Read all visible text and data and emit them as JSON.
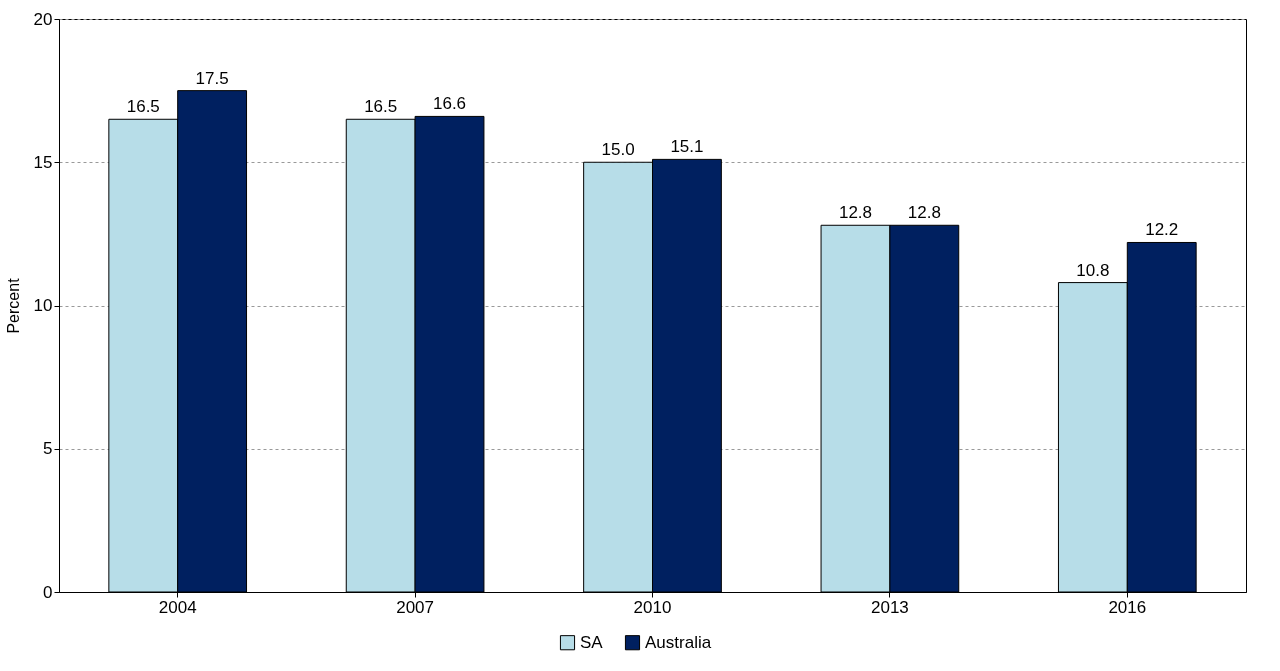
{
  "chart_data": {
    "type": "bar",
    "ylabel": "Percent",
    "categories": [
      "2004",
      "2007",
      "2010",
      "2013",
      "2016"
    ],
    "series": [
      {
        "name": "SA",
        "color": "#b7dde8",
        "values": [
          16.5,
          16.5,
          15.0,
          12.8,
          10.8
        ],
        "value_labels": [
          "16.5",
          "16.5",
          "15.0",
          "12.8",
          "10.8"
        ]
      },
      {
        "name": "Australia",
        "color": "#002060",
        "values": [
          17.5,
          16.6,
          15.1,
          12.8,
          12.2
        ],
        "value_labels": [
          "17.5",
          "16.6",
          "15.1",
          "12.8",
          "12.2"
        ]
      }
    ],
    "ylim": [
      0,
      20
    ],
    "yticks": [
      0,
      5,
      10,
      15,
      20
    ],
    "grid": "y",
    "legend": "bottom"
  }
}
